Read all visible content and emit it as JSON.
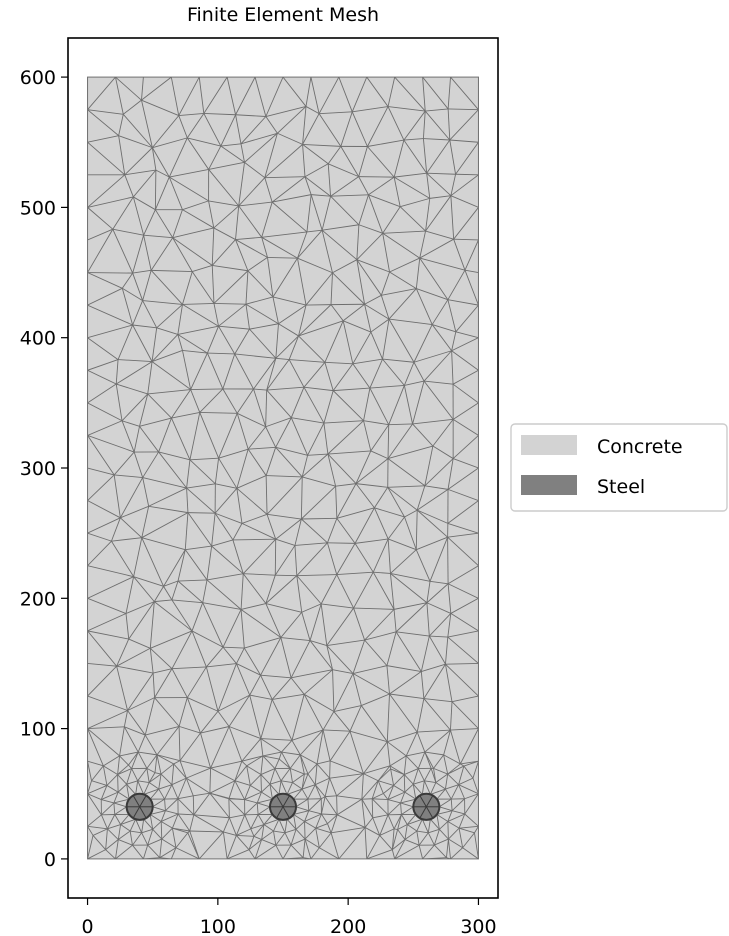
{
  "chart_data": {
    "type": "mesh",
    "title": "Finite Element Mesh",
    "xlabel": "",
    "ylabel": "",
    "xlim": [
      -15,
      315
    ],
    "ylim": [
      -30,
      630
    ],
    "aspect": "equal",
    "x_ticks": [
      0,
      100,
      200,
      300
    ],
    "y_ticks": [
      0,
      100,
      200,
      300,
      400,
      500,
      600
    ],
    "section": {
      "width": 300,
      "height": 600
    },
    "materials": [
      {
        "name": "Concrete",
        "color": "#d3d3d3"
      },
      {
        "name": "Steel",
        "color": "#808080"
      }
    ],
    "rebars": [
      {
        "x": 40,
        "y": 40,
        "diameter": 20
      },
      {
        "x": 150,
        "y": 40,
        "diameter": 20
      },
      {
        "x": 260,
        "y": 40,
        "diameter": 20
      }
    ],
    "mesh_edge_color": "#6e6e6e",
    "legend": {
      "placement": "right",
      "entries": [
        "Concrete",
        "Steel"
      ]
    }
  }
}
